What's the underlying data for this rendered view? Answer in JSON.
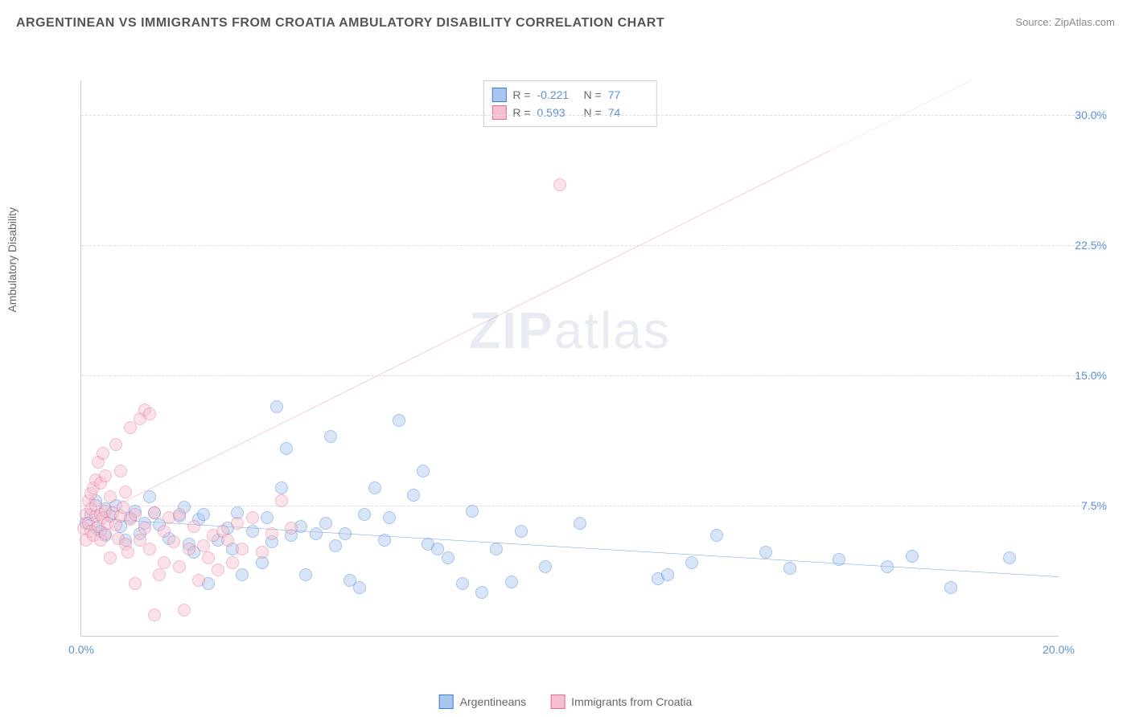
{
  "title": "ARGENTINEAN VS IMMIGRANTS FROM CROATIA AMBULATORY DISABILITY CORRELATION CHART",
  "source_label": "Source:",
  "source_name": "ZipAtlas.com",
  "y_axis_label": "Ambulatory Disability",
  "watermark_bold": "ZIP",
  "watermark_light": "atlas",
  "chart": {
    "type": "scatter",
    "x_min": 0.0,
    "x_max": 20.0,
    "y_min": 0.0,
    "y_max": 32.0,
    "y_ticks": [
      7.5,
      15.0,
      22.5,
      30.0
    ],
    "y_tick_labels": [
      "7.5%",
      "15.0%",
      "22.5%",
      "30.0%"
    ],
    "x_ticks": [
      0.0,
      20.0
    ],
    "x_tick_labels": [
      "0.0%",
      "20.0%"
    ],
    "grid_color": "#dddddd",
    "background_color": "#ffffff",
    "marker_radius": 8,
    "marker_opacity": 0.45,
    "title_fontsize": 16,
    "tick_fontsize": 14,
    "tick_color": "#5b8fd6"
  },
  "series": [
    {
      "name": "Argentineans",
      "fill": "#a9c7ec",
      "stroke": "#3b7dd8",
      "trend_color": "#2f6fd0",
      "r_label": "R =",
      "r_value": "-0.221",
      "n_label": "N =",
      "n_value": "77",
      "trend": {
        "x1": 0.0,
        "y1": 6.8,
        "x2": 20.0,
        "y2": 3.4,
        "dash_from_x": null
      },
      "points": [
        [
          0.1,
          6.5
        ],
        [
          0.2,
          7.0
        ],
        [
          0.3,
          6.2
        ],
        [
          0.3,
          7.8
        ],
        [
          0.4,
          6.0
        ],
        [
          0.5,
          7.3
        ],
        [
          0.5,
          5.8
        ],
        [
          0.6,
          6.9
        ],
        [
          0.7,
          7.5
        ],
        [
          0.8,
          6.3
        ],
        [
          0.9,
          5.5
        ],
        [
          1.0,
          6.8
        ],
        [
          1.1,
          7.2
        ],
        [
          1.2,
          5.9
        ],
        [
          1.3,
          6.5
        ],
        [
          1.4,
          8.0
        ],
        [
          1.5,
          7.1
        ],
        [
          1.6,
          6.4
        ],
        [
          1.8,
          5.6
        ],
        [
          2.0,
          6.9
        ],
        [
          2.1,
          7.4
        ],
        [
          2.2,
          5.3
        ],
        [
          2.3,
          4.8
        ],
        [
          2.4,
          6.7
        ],
        [
          2.5,
          7.0
        ],
        [
          2.6,
          3.0
        ],
        [
          2.8,
          5.5
        ],
        [
          3.0,
          6.2
        ],
        [
          3.1,
          5.0
        ],
        [
          3.2,
          7.1
        ],
        [
          3.3,
          3.5
        ],
        [
          3.5,
          6.0
        ],
        [
          3.7,
          4.2
        ],
        [
          3.8,
          6.8
        ],
        [
          3.9,
          5.4
        ],
        [
          4.0,
          13.2
        ],
        [
          4.1,
          8.5
        ],
        [
          4.2,
          10.8
        ],
        [
          4.3,
          5.8
        ],
        [
          4.5,
          6.3
        ],
        [
          4.6,
          3.5
        ],
        [
          4.8,
          5.9
        ],
        [
          5.0,
          6.5
        ],
        [
          5.1,
          11.5
        ],
        [
          5.2,
          5.2
        ],
        [
          5.4,
          5.9
        ],
        [
          5.5,
          3.2
        ],
        [
          5.7,
          2.8
        ],
        [
          5.8,
          7.0
        ],
        [
          6.0,
          8.5
        ],
        [
          6.2,
          5.5
        ],
        [
          6.3,
          6.8
        ],
        [
          6.5,
          12.4
        ],
        [
          6.8,
          8.1
        ],
        [
          7.0,
          9.5
        ],
        [
          7.1,
          5.3
        ],
        [
          7.3,
          5.0
        ],
        [
          7.5,
          4.5
        ],
        [
          7.8,
          3.0
        ],
        [
          8.0,
          7.2
        ],
        [
          8.2,
          2.5
        ],
        [
          8.5,
          5.0
        ],
        [
          8.8,
          3.1
        ],
        [
          9.0,
          6.0
        ],
        [
          9.5,
          4.0
        ],
        [
          10.2,
          6.5
        ],
        [
          11.8,
          3.3
        ],
        [
          12.0,
          3.5
        ],
        [
          12.5,
          4.2
        ],
        [
          13.0,
          5.8
        ],
        [
          14.0,
          4.8
        ],
        [
          14.5,
          3.9
        ],
        [
          15.5,
          4.4
        ],
        [
          16.5,
          4.0
        ],
        [
          17.0,
          4.6
        ],
        [
          17.8,
          2.8
        ],
        [
          19.0,
          4.5
        ]
      ]
    },
    {
      "name": "Immigrants from Croatia",
      "fill": "#f6bfcf",
      "stroke": "#e56b8f",
      "trend_color": "#e0517d",
      "r_label": "R =",
      "r_value": "0.593",
      "n_label": "N =",
      "n_value": "74",
      "trend": {
        "x1": 0.0,
        "y1": 6.5,
        "x2": 20.0,
        "y2": 34.5,
        "dash_from_x": 15.3
      },
      "points": [
        [
          0.05,
          6.2
        ],
        [
          0.1,
          7.0
        ],
        [
          0.1,
          5.5
        ],
        [
          0.15,
          7.8
        ],
        [
          0.15,
          6.5
        ],
        [
          0.2,
          8.2
        ],
        [
          0.2,
          6.0
        ],
        [
          0.2,
          7.3
        ],
        [
          0.25,
          5.8
        ],
        [
          0.25,
          8.5
        ],
        [
          0.3,
          6.9
        ],
        [
          0.3,
          9.0
        ],
        [
          0.3,
          7.5
        ],
        [
          0.35,
          6.3
        ],
        [
          0.35,
          10.0
        ],
        [
          0.4,
          5.5
        ],
        [
          0.4,
          7.0
        ],
        [
          0.4,
          8.8
        ],
        [
          0.45,
          6.8
        ],
        [
          0.45,
          10.5
        ],
        [
          0.5,
          7.2
        ],
        [
          0.5,
          5.9
        ],
        [
          0.5,
          9.2
        ],
        [
          0.55,
          6.5
        ],
        [
          0.6,
          8.0
        ],
        [
          0.6,
          4.5
        ],
        [
          0.65,
          7.1
        ],
        [
          0.7,
          6.4
        ],
        [
          0.7,
          11.0
        ],
        [
          0.75,
          5.6
        ],
        [
          0.8,
          6.9
        ],
        [
          0.8,
          9.5
        ],
        [
          0.85,
          7.4
        ],
        [
          0.9,
          5.3
        ],
        [
          0.9,
          8.3
        ],
        [
          0.95,
          4.8
        ],
        [
          1.0,
          6.7
        ],
        [
          1.0,
          12.0
        ],
        [
          1.1,
          7.0
        ],
        [
          1.1,
          3.0
        ],
        [
          1.2,
          5.5
        ],
        [
          1.2,
          12.5
        ],
        [
          1.3,
          6.2
        ],
        [
          1.3,
          13.0
        ],
        [
          1.4,
          5.0
        ],
        [
          1.4,
          12.8
        ],
        [
          1.5,
          7.1
        ],
        [
          1.5,
          1.2
        ],
        [
          1.6,
          3.5
        ],
        [
          1.7,
          6.0
        ],
        [
          1.7,
          4.2
        ],
        [
          1.8,
          6.8
        ],
        [
          1.9,
          5.4
        ],
        [
          2.0,
          7.0
        ],
        [
          2.0,
          4.0
        ],
        [
          2.1,
          1.5
        ],
        [
          2.2,
          5.0
        ],
        [
          2.3,
          6.3
        ],
        [
          2.4,
          3.2
        ],
        [
          2.5,
          5.2
        ],
        [
          2.6,
          4.5
        ],
        [
          2.7,
          5.8
        ],
        [
          2.8,
          3.8
        ],
        [
          2.9,
          6.0
        ],
        [
          3.0,
          5.5
        ],
        [
          3.1,
          4.2
        ],
        [
          3.2,
          6.5
        ],
        [
          3.3,
          5.0
        ],
        [
          3.5,
          6.8
        ],
        [
          3.7,
          4.8
        ],
        [
          3.9,
          5.9
        ],
        [
          4.1,
          7.8
        ],
        [
          4.3,
          6.2
        ],
        [
          9.8,
          26.0
        ]
      ]
    }
  ]
}
